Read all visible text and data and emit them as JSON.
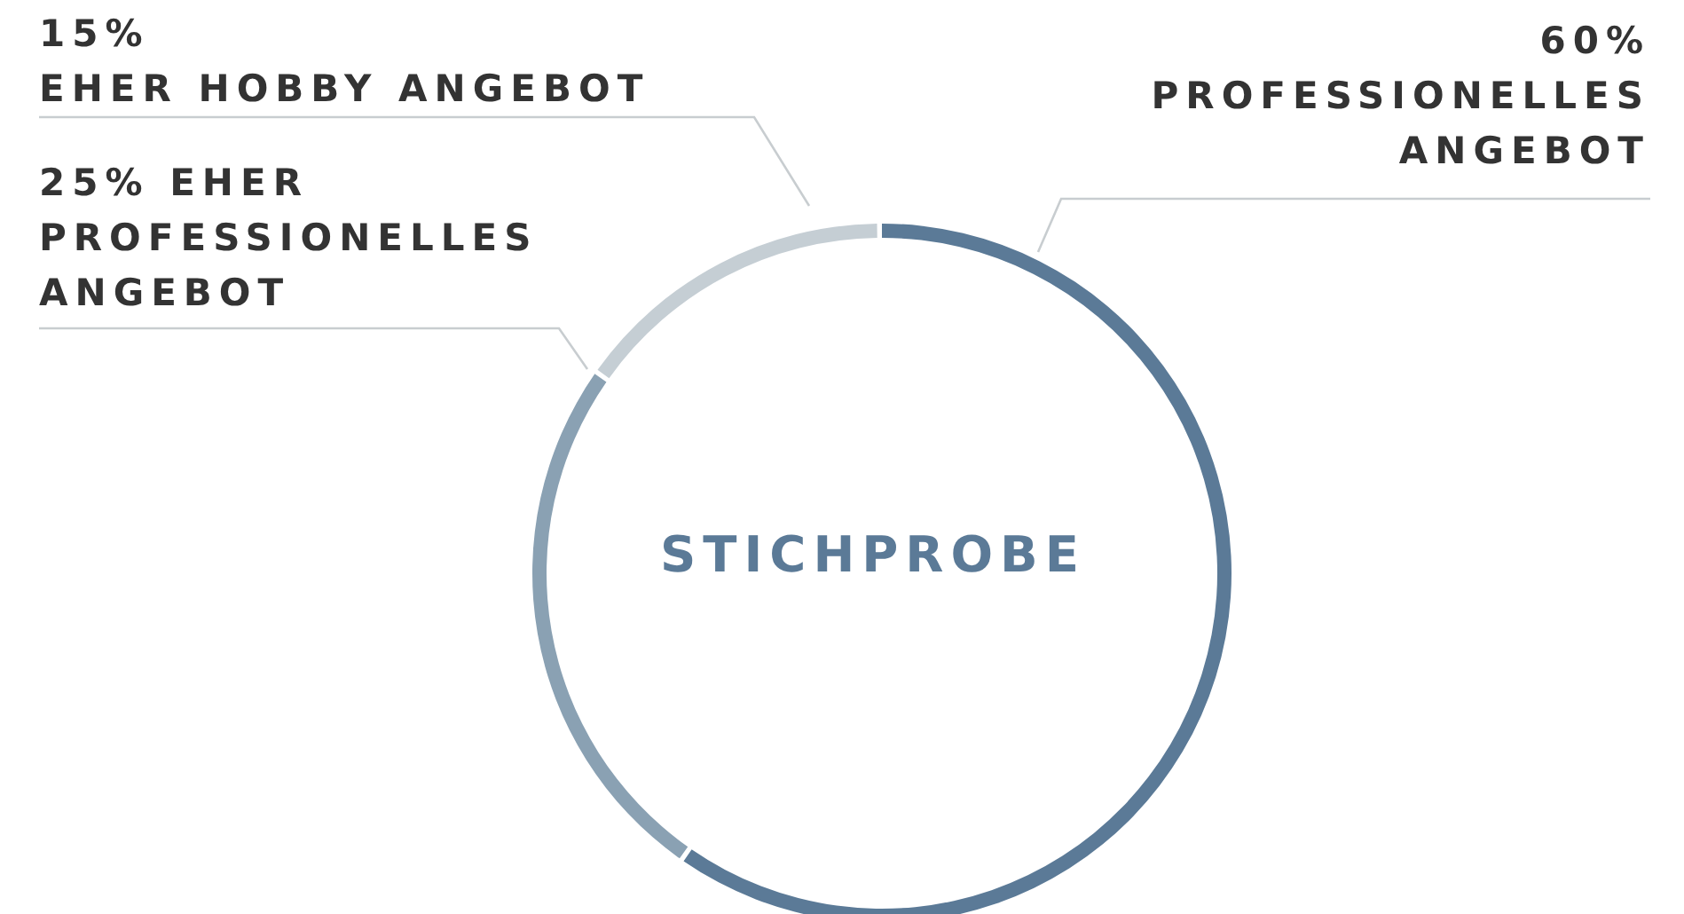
{
  "chart_data": {
    "type": "donut",
    "title": "STICHPROBE",
    "categories": [
      "PROFESSIONELLES ANGEBOT",
      "EHER PROFESSIONELLES ANGEBOT",
      "EHER HOBBY ANGEBOT"
    ],
    "values": [
      60,
      25,
      15
    ],
    "value_labels": [
      "60%",
      "25%",
      "15%"
    ],
    "colors": [
      "#5b7a97",
      "#8aa1b3",
      "#c5ced4"
    ]
  }
}
